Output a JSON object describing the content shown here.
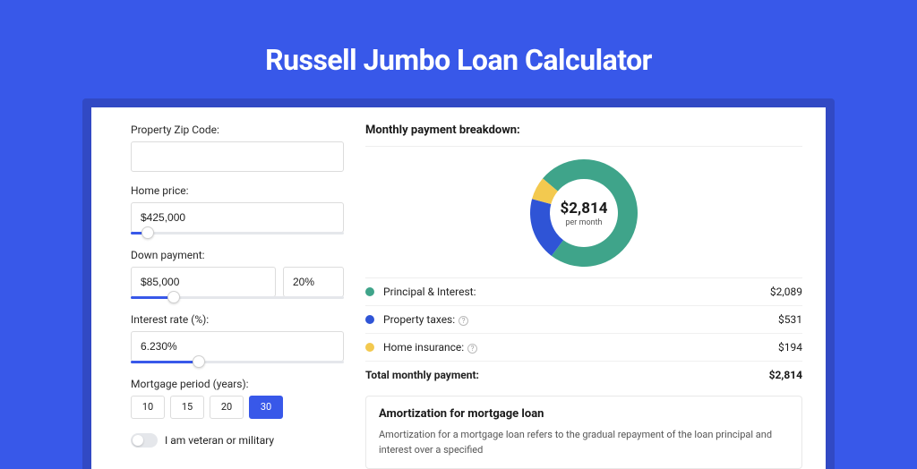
{
  "title": "Russell Jumbo Loan Calculator",
  "colors": {
    "page_bg": "#3858e9",
    "panel_wrap_bg": "#3149c4",
    "accent": "#3858e9"
  },
  "form": {
    "zip": {
      "label": "Property Zip Code:",
      "value": ""
    },
    "home_price": {
      "label": "Home price:",
      "value": "$425,000",
      "slider_pct": 8
    },
    "down_payment": {
      "label": "Down payment:",
      "value": "$85,000",
      "pct": "20%",
      "slider_pct": 20
    },
    "interest_rate": {
      "label": "Interest rate (%):",
      "value": "6.230%",
      "slider_pct": 32
    },
    "mortgage_period": {
      "label": "Mortgage period (years):",
      "options": [
        "10",
        "15",
        "20",
        "30"
      ],
      "selected": "30"
    },
    "veteran": {
      "label": "I am veteran or military",
      "enabled": false
    }
  },
  "breakdown": {
    "header": "Monthly payment breakdown:",
    "donut": {
      "type": "donut",
      "center_value": "$2,814",
      "center_label": "per month",
      "size": 120,
      "thickness": 22,
      "background_color": "#ffffff",
      "slices": [
        {
          "label": "Principal & Interest",
          "value": 2089,
          "pct": 74.2,
          "color": "#3fa48a"
        },
        {
          "label": "Property taxes",
          "value": 531,
          "pct": 18.9,
          "color": "#2f54d6"
        },
        {
          "label": "Home insurance",
          "value": 194,
          "pct": 6.9,
          "color": "#f3c94f"
        }
      ]
    },
    "rows": [
      {
        "dot_color": "#3fa48a",
        "label": "Principal & Interest:",
        "info": false,
        "value": "$2,089"
      },
      {
        "dot_color": "#2f54d6",
        "label": "Property taxes:",
        "info": true,
        "value": "$531"
      },
      {
        "dot_color": "#f3c94f",
        "label": "Home insurance:",
        "info": true,
        "value": "$194"
      }
    ],
    "total": {
      "label": "Total monthly payment:",
      "value": "$2,814"
    }
  },
  "amortization": {
    "title": "Amortization for mortgage loan",
    "text": "Amortization for a mortgage loan refers to the gradual repayment of the loan principal and interest over a specified"
  }
}
